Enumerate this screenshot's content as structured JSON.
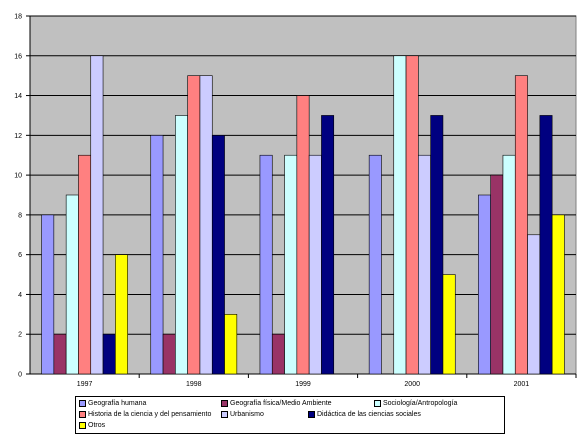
{
  "chart_data": {
    "type": "bar",
    "categories": [
      "1997",
      "1998",
      "1999",
      "2000",
      "2001"
    ],
    "ylim": [
      0,
      18
    ],
    "yticks": [
      0,
      2,
      4,
      6,
      8,
      10,
      12,
      14,
      16,
      18
    ],
    "grid": true,
    "legend_position": "bottom",
    "plot_background": "#c0c0c0",
    "series": [
      {
        "name": "Geografía humana",
        "color": "#9999ff",
        "values": [
          8,
          12,
          11,
          11,
          9
        ]
      },
      {
        "name": "Geografía física/Medio Ambiente",
        "color": "#993366",
        "values": [
          2,
          2,
          2,
          0,
          10
        ]
      },
      {
        "name": "Sociología/Antropología",
        "color": "#ccffff",
        "values": [
          9,
          13,
          11,
          16,
          11
        ]
      },
      {
        "name": "Historia de la ciencia y del pensamiento",
        "color": "#ff8080",
        "values": [
          11,
          15,
          14,
          16,
          15
        ]
      },
      {
        "name": "Urbanismo",
        "color": "#ccccff",
        "values": [
          16,
          15,
          11,
          11,
          7
        ]
      },
      {
        "name": "Didáctica de las ciencias sociales",
        "color": "#000080",
        "values": [
          2,
          12,
          13,
          13,
          13
        ]
      },
      {
        "name": "Otros",
        "color": "#ffff00",
        "values": [
          6,
          3,
          0,
          5,
          8
        ]
      }
    ]
  }
}
